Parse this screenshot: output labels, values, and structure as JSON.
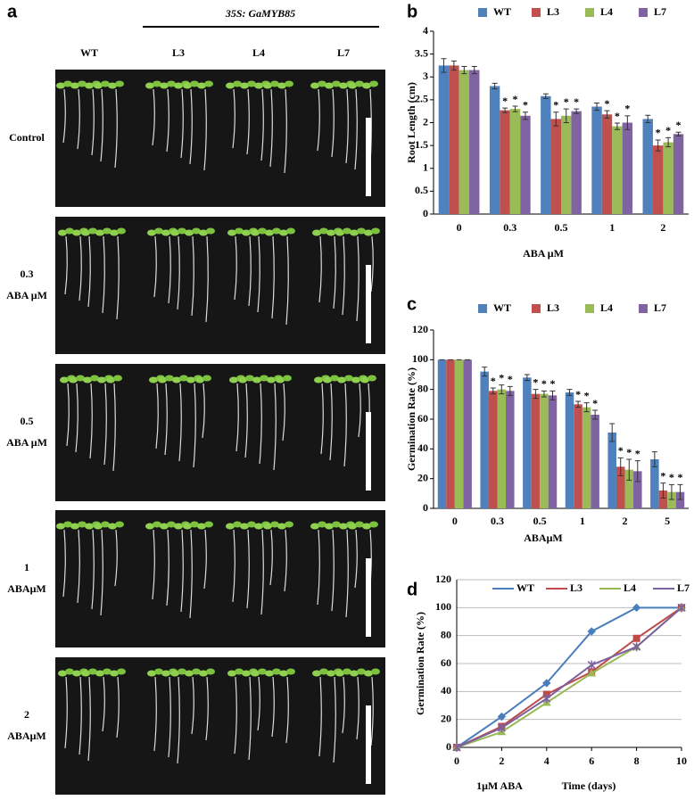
{
  "photo_panel": {
    "panel_label": "a",
    "construct": "35S: GaMYB85",
    "columns": [
      "WT",
      "L3",
      "L4",
      "L7"
    ],
    "rows": [
      [
        "Control"
      ],
      [
        "0.3",
        "ABA μM"
      ],
      [
        "0.5",
        "ABA μM"
      ],
      [
        "1",
        "ABAμM"
      ],
      [
        "2",
        "ABAμM"
      ]
    ]
  },
  "chart_data": [
    {
      "type": "bar",
      "panel_label": "b",
      "ylabel": "Root Length (cm)",
      "xlabel": "ABA μM",
      "categories": [
        "0",
        "0.3",
        "0.5",
        "1",
        "2"
      ],
      "ylim": [
        0,
        4
      ],
      "yticks": [
        0,
        0.5,
        1,
        1.5,
        2,
        2.5,
        3,
        3.5,
        4
      ],
      "series": [
        {
          "name": "WT",
          "color": "#4f81bd",
          "values": [
            3.25,
            2.8,
            2.58,
            2.35,
            2.08
          ],
          "errors": [
            0.15,
            0.06,
            0.05,
            0.08,
            0.08
          ]
        },
        {
          "name": "L3",
          "color": "#c0504d",
          "values": [
            3.25,
            2.27,
            2.08,
            2.18,
            1.5
          ],
          "errors": [
            0.1,
            0.05,
            0.15,
            0.08,
            0.12
          ],
          "significance": [
            null,
            "*",
            "*",
            "*",
            "*"
          ]
        },
        {
          "name": "L4",
          "color": "#9bbb59",
          "values": [
            3.15,
            2.3,
            2.15,
            1.92,
            1.57
          ],
          "errors": [
            0.08,
            0.06,
            0.15,
            0.07,
            0.1
          ],
          "significance": [
            null,
            "*",
            "*",
            "*",
            "*"
          ]
        },
        {
          "name": "L7",
          "color": "#8064a2",
          "values": [
            3.15,
            2.15,
            2.25,
            2.0,
            1.75
          ],
          "errors": [
            0.08,
            0.08,
            0.05,
            0.15,
            0.04
          ],
          "significance": [
            null,
            "*",
            "*",
            "*",
            "*"
          ]
        }
      ]
    },
    {
      "type": "bar",
      "panel_label": "c",
      "ylabel": "Germination Rate (%)",
      "xlabel": "ABAμM",
      "categories": [
        "0",
        "0.3",
        "0.5",
        "1",
        "2",
        "5"
      ],
      "ylim": [
        0,
        120
      ],
      "yticks": [
        0,
        20,
        40,
        60,
        80,
        100,
        120
      ],
      "series": [
        {
          "name": "WT",
          "color": "#4f81bd",
          "values": [
            100,
            92,
            88,
            78,
            51,
            33
          ],
          "errors": [
            0,
            3,
            2,
            2,
            6,
            5
          ]
        },
        {
          "name": "L3",
          "color": "#c0504d",
          "values": [
            100,
            79,
            77,
            70,
            28,
            12
          ],
          "errors": [
            0,
            2,
            3,
            2,
            6,
            5
          ],
          "significance": [
            null,
            "*",
            "*",
            "*",
            "*",
            "*"
          ]
        },
        {
          "name": "L4",
          "color": "#9bbb59",
          "values": [
            100,
            80,
            77,
            68,
            26,
            11
          ],
          "errors": [
            0,
            3,
            2,
            3,
            7,
            5
          ],
          "significance": [
            null,
            "*",
            "*",
            "*",
            "*",
            "*"
          ]
        },
        {
          "name": "L7",
          "color": "#8064a2",
          "values": [
            100,
            79,
            76,
            63,
            25,
            11
          ],
          "errors": [
            0,
            3,
            3,
            3,
            7,
            5
          ],
          "significance": [
            null,
            "*",
            "*",
            "*",
            "*",
            "*"
          ]
        }
      ]
    },
    {
      "type": "line",
      "panel_label": "d",
      "ylabel": "Germination Rate (%)",
      "xlabel": "Time (days)",
      "annotation": "1μM ABA",
      "x": [
        0,
        2,
        4,
        6,
        8,
        10
      ],
      "xlim": [
        0,
        10
      ],
      "xticks": [
        0,
        2,
        4,
        6,
        8,
        10
      ],
      "ylim": [
        0,
        120
      ],
      "yticks": [
        0,
        20,
        40,
        60,
        80,
        100,
        120
      ],
      "grid": true,
      "series": [
        {
          "name": "WT",
          "color": "#4a7ebb",
          "marker": "diamond",
          "values": [
            0,
            22,
            46,
            83,
            100,
            100
          ]
        },
        {
          "name": "L3",
          "color": "#be4b48",
          "marker": "square",
          "values": [
            0,
            15,
            38,
            54,
            78,
            100
          ]
        },
        {
          "name": "L4",
          "color": "#98b954",
          "marker": "triangle",
          "values": [
            0,
            11,
            32,
            53,
            72,
            100
          ]
        },
        {
          "name": "L7",
          "color": "#7d60a0",
          "marker": "star",
          "values": [
            0,
            14,
            35,
            59,
            72,
            100
          ]
        }
      ]
    }
  ]
}
